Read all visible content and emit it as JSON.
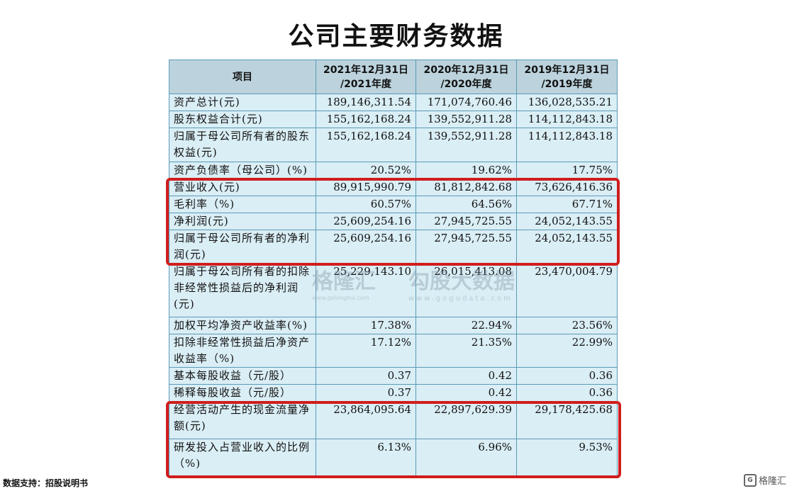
{
  "title": "公司主要财务数据",
  "table": {
    "headers": [
      "项目",
      "2021年12月31日\n/2021年度",
      "2020年12月31日\n/2020年度",
      "2019年12月31日\n/2019年度"
    ],
    "rows": [
      {
        "label": "资产总计(元)",
        "v": [
          "189,146,311.54",
          "171,074,760.46",
          "136,028,535.21"
        ]
      },
      {
        "label": "股东权益合计(元)",
        "v": [
          "155,162,168.24",
          "139,552,911.28",
          "114,112,843.18"
        ]
      },
      {
        "label": "归属于母公司所有者的股东权益(元)",
        "v": [
          "155,162,168.24",
          "139,552,911.28",
          "114,112,843.18"
        ]
      },
      {
        "label": "资产负债率（母公司）(%)",
        "v": [
          "20.52%",
          "19.62%",
          "17.75%"
        ]
      },
      {
        "label": "营业收入(元)",
        "v": [
          "89,915,990.79",
          "81,812,842.68",
          "73,626,416.36"
        ]
      },
      {
        "label": "毛利率（%)",
        "v": [
          "60.57%",
          "64.56%",
          "67.71%"
        ]
      },
      {
        "label": "净利润(元)",
        "v": [
          "25,609,254.16",
          "27,945,725.55",
          "24,052,143.55"
        ]
      },
      {
        "label": "归属于母公司所有者的净利润(元)",
        "v": [
          "25,609,254.16",
          "27,945,725.55",
          "24,052,143.55"
        ]
      },
      {
        "label": "归属于母公司所有者的扣除非经常性损益后的净利润(元)",
        "v": [
          "25,229,143.10",
          "26,015,413.08",
          "23,470,004.79"
        ]
      },
      {
        "label": "加权平均净资产收益率(%)",
        "v": [
          "17.38%",
          "22.94%",
          "23.56%"
        ]
      },
      {
        "label": "扣除非经常性损益后净资产收益率（%)",
        "v": [
          "17.12%",
          "21.35%",
          "22.99%"
        ]
      },
      {
        "label": "基本每股收益（元/股）",
        "v": [
          "0.37",
          "0.42",
          "0.36"
        ]
      },
      {
        "label": "稀释每股收益（元/股）",
        "v": [
          "0.37",
          "0.42",
          "0.36"
        ]
      },
      {
        "label": "经营活动产生的现金流量净额(元)",
        "v": [
          "23,864,095.64",
          "22,897,629.39",
          "29,178,425.68"
        ]
      },
      {
        "label": "研发投入占营业收入的比例（%)",
        "v": [
          "6.13%",
          "6.96%",
          "9.53%"
        ]
      }
    ]
  },
  "source": "数据支持：招股说明书",
  "watermark": {
    "left": "格隆汇",
    "left_url": "www.gelonghui.com",
    "right": "勾股大数据",
    "right_url": "www.gogudata.com"
  },
  "logo": "格隆汇",
  "colors": {
    "highlight": "#d01d1d",
    "table_bg": "#daeef5",
    "header_bg": "#bcd3dd"
  }
}
